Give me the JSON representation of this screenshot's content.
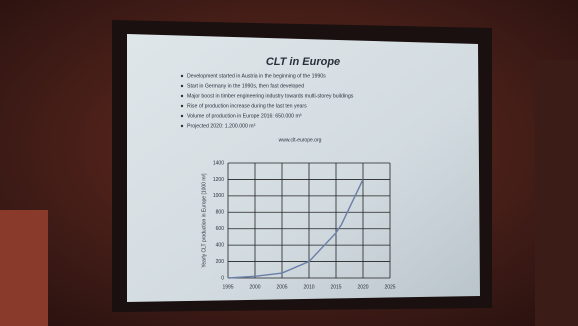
{
  "slide": {
    "title": "CLT in Europe",
    "bullets": [
      "Development started in Austria in the beginning of the 1990s",
      "Start in Germany in the 1990s, then fast developed",
      "Major boost in timber engineering industry towards multi-storey buildings",
      "Rise of production increase during the last ten years",
      "Volume of production in Europe 2016: 650.000 m³",
      "Projected 2020: 1.200.000 m³"
    ]
  },
  "chart_data": {
    "type": "line",
    "y_label": "Yearly CLT production in Europe [1000 m³]",
    "x": [
      1995,
      2000,
      2005,
      2010,
      2015,
      2016,
      2020
    ],
    "values": [
      0,
      20,
      60,
      200,
      550,
      650,
      1200
    ],
    "color": "#6a7fa8",
    "xlim": [
      1995,
      2025
    ],
    "xticks": [
      1995,
      2000,
      2005,
      2010,
      2015,
      2020,
      2025
    ],
    "ylim": [
      0,
      1400
    ],
    "yticks": [
      0,
      200,
      400,
      600,
      800,
      1000,
      1200,
      1400
    ],
    "grid": true
  }
}
